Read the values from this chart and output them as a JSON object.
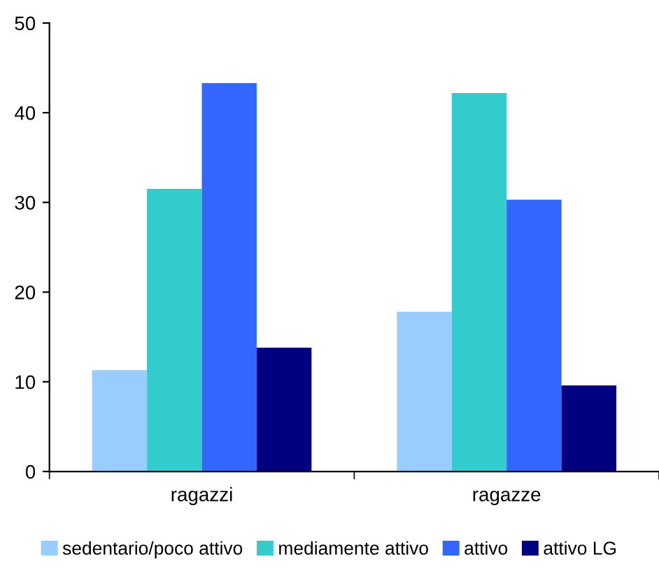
{
  "chart_data": {
    "type": "bar",
    "categories": [
      "ragazzi",
      "ragazze"
    ],
    "series": [
      {
        "name": "sedentario/poco attivo",
        "color": "#99ccff",
        "values": [
          11.3,
          17.8
        ]
      },
      {
        "name": "mediamente attivo",
        "color": "#33cccc",
        "values": [
          31.5,
          42.2
        ]
      },
      {
        "name": "attivo",
        "color": "#3366ff",
        "values": [
          43.3,
          30.3
        ]
      },
      {
        "name": "attivo LG",
        "color": "#000080",
        "values": [
          13.8,
          9.6
        ]
      }
    ],
    "ylim": [
      0,
      50
    ],
    "yticks": [
      0,
      10,
      20,
      30,
      40,
      50
    ],
    "grid": false,
    "legend": "bottom"
  }
}
